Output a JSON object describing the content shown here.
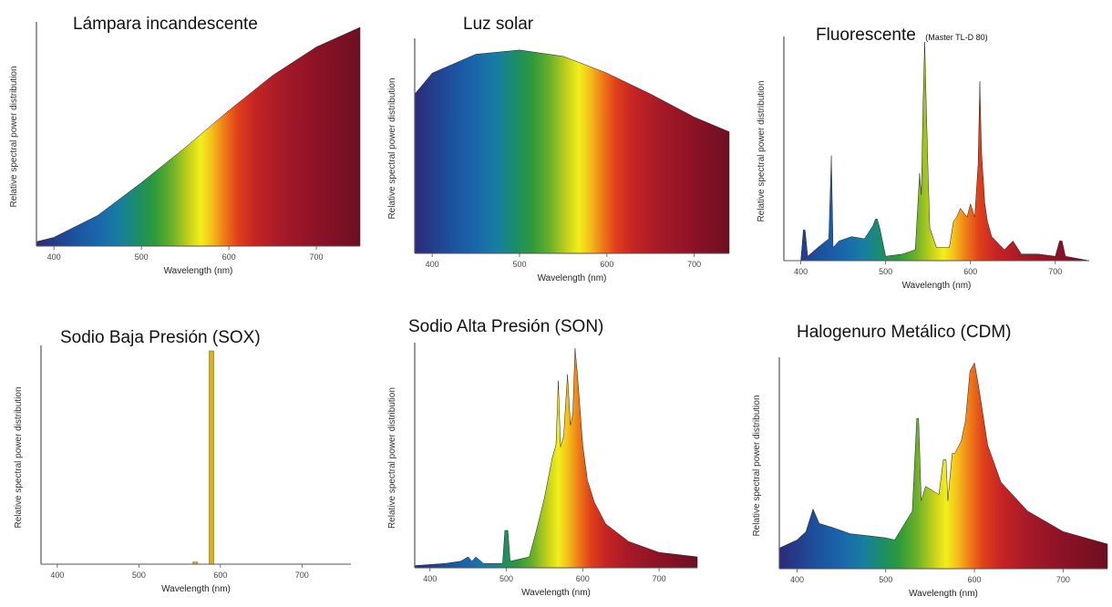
{
  "chart_data": [
    {
      "id": "incandescent",
      "type": "area",
      "title": "Lámpara incandescente",
      "subtitle": "",
      "xlabel": "Wavelength (nm)",
      "ylabel": "Relative spectral power distribution",
      "xlim": [
        380,
        750
      ],
      "ylim": [
        0,
        1
      ],
      "xticks": [
        {
          "v": 400,
          "label": "400"
        },
        {
          "v": 500,
          "label": "500"
        },
        {
          "v": 600,
          "label": "600"
        },
        {
          "v": 700,
          "label": "700"
        }
      ],
      "x": [
        380,
        400,
        450,
        500,
        550,
        600,
        650,
        700,
        750
      ],
      "y": [
        0.02,
        0.04,
        0.14,
        0.29,
        0.45,
        0.62,
        0.78,
        0.91,
        1.0
      ]
    },
    {
      "id": "sunlight",
      "type": "area",
      "title": "Luz solar",
      "subtitle": "",
      "xlabel": "Wavelength (nm)",
      "ylabel": "Relative spectral power distribution",
      "xlim": [
        380,
        740
      ],
      "ylim": [
        0,
        1
      ],
      "xticks": [
        {
          "v": 400,
          "label": "400"
        },
        {
          "v": 500,
          "label": "500"
        },
        {
          "v": 600,
          "label": "600"
        },
        {
          "v": 700,
          "label": "700"
        }
      ],
      "x": [
        380,
        400,
        450,
        500,
        550,
        600,
        650,
        700,
        740
      ],
      "y": [
        0.76,
        0.86,
        0.95,
        0.97,
        0.94,
        0.86,
        0.76,
        0.65,
        0.58
      ]
    },
    {
      "id": "fluorescent",
      "type": "area",
      "title": "Fluorescente",
      "subtitle": "(Master TL-D 80)",
      "xlabel": "Wavelength (nm)",
      "ylabel": "Relative spectral power distribution",
      "xlim": [
        380,
        740
      ],
      "ylim": [
        0,
        1
      ],
      "xticks": [
        {
          "v": 400,
          "label": "400"
        },
        {
          "v": 500,
          "label": "500"
        },
        {
          "v": 600,
          "label": "600"
        },
        {
          "v": 700,
          "label": "700"
        }
      ],
      "x": [
        380,
        400,
        403,
        405,
        408,
        420,
        433,
        436,
        438,
        445,
        460,
        475,
        485,
        488,
        490,
        493,
        500,
        520,
        535,
        540,
        542,
        544,
        546,
        548,
        550,
        552,
        560,
        575,
        580,
        584,
        588,
        592,
        596,
        600,
        605,
        609,
        611,
        613,
        617,
        620,
        625,
        640,
        650,
        660,
        680,
        700,
        705,
        708,
        712,
        740
      ],
      "y": [
        0,
        0,
        0.14,
        0.14,
        0.02,
        0.06,
        0.1,
        0.48,
        0.06,
        0.09,
        0.11,
        0.1,
        0.16,
        0.19,
        0.19,
        0.15,
        0.02,
        0.03,
        0.05,
        0.4,
        0.3,
        0.7,
        1.0,
        0.7,
        0.4,
        0.15,
        0.06,
        0.06,
        0.18,
        0.2,
        0.24,
        0.22,
        0.2,
        0.26,
        0.2,
        0.44,
        0.82,
        0.5,
        0.26,
        0.18,
        0.11,
        0.05,
        0.09,
        0.03,
        0.03,
        0.02,
        0.09,
        0.09,
        0.02,
        0
      ]
    },
    {
      "id": "sox",
      "type": "bar",
      "title": "Sodio Baja Presión (SOX)",
      "subtitle": "",
      "xlabel": "Wavelength (nm)",
      "ylabel": "Relative spectral power distribution",
      "xlim": [
        380,
        760
      ],
      "ylim": [
        0,
        1
      ],
      "xticks": [
        {
          "v": 400,
          "label": "400"
        },
        {
          "v": 500,
          "label": "500"
        },
        {
          "v": 600,
          "label": "600"
        },
        {
          "v": 700,
          "label": "700"
        }
      ],
      "x": [
        569,
        589
      ],
      "y": [
        0.01,
        1.0
      ]
    },
    {
      "id": "son",
      "type": "area",
      "title": "Sodio Alta Presión (SON)",
      "subtitle": "",
      "xlabel": "Wavelength (nm)",
      "ylabel": "Relative spectral power distribution",
      "xlim": [
        380,
        750
      ],
      "ylim": [
        0,
        1
      ],
      "xticks": [
        {
          "v": 400,
          "label": "400"
        },
        {
          "v": 500,
          "label": "500"
        },
        {
          "v": 600,
          "label": "600"
        },
        {
          "v": 700,
          "label": "700"
        }
      ],
      "x": [
        380,
        420,
        440,
        450,
        455,
        460,
        470,
        495,
        498,
        502,
        505,
        530,
        540,
        550,
        560,
        565,
        568,
        571,
        575,
        580,
        584,
        587,
        590,
        593,
        597,
        600,
        606,
        615,
        630,
        660,
        700,
        750
      ],
      "y": [
        0.01,
        0.02,
        0.03,
        0.05,
        0.03,
        0.05,
        0.02,
        0.02,
        0.17,
        0.17,
        0.03,
        0.05,
        0.18,
        0.32,
        0.5,
        0.56,
        0.85,
        0.55,
        0.6,
        0.88,
        0.65,
        0.7,
        1.0,
        0.88,
        0.7,
        0.56,
        0.4,
        0.3,
        0.2,
        0.12,
        0.07,
        0.05
      ]
    },
    {
      "id": "cdm",
      "type": "area",
      "title": "Halogenuro Metálico (CDM)",
      "subtitle": "",
      "xlabel": "Wavelength (nm)",
      "ylabel": "Relative spectral power distribution",
      "xlim": [
        380,
        750
      ],
      "ylim": [
        0,
        1
      ],
      "xticks": [
        {
          "v": 400,
          "label": "400"
        },
        {
          "v": 500,
          "label": "500"
        },
        {
          "v": 600,
          "label": "600"
        },
        {
          "v": 700,
          "label": "700"
        }
      ],
      "x": [
        380,
        400,
        410,
        418,
        425,
        440,
        460,
        480,
        500,
        510,
        530,
        535,
        537,
        540,
        545,
        560,
        565,
        568,
        570,
        575,
        578,
        585,
        590,
        595,
        600,
        605,
        615,
        630,
        660,
        700,
        750
      ],
      "y": [
        0.1,
        0.14,
        0.18,
        0.29,
        0.22,
        0.2,
        0.17,
        0.16,
        0.15,
        0.14,
        0.28,
        0.73,
        0.73,
        0.33,
        0.4,
        0.36,
        0.53,
        0.53,
        0.33,
        0.56,
        0.56,
        0.62,
        0.72,
        0.96,
        1.0,
        0.88,
        0.6,
        0.42,
        0.28,
        0.18,
        0.12
      ]
    }
  ]
}
